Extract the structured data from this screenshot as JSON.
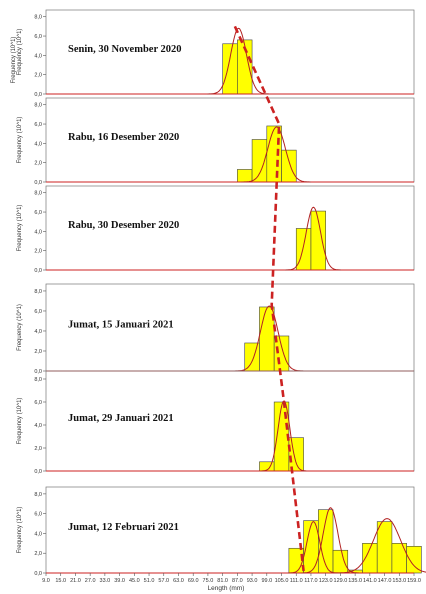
{
  "chart_data": {
    "type": "bar",
    "xlabel": "Length (mm)",
    "ylabel": "Frequency (10^1)",
    "ylim": [
      0,
      8
    ],
    "y_ticks": [
      "0,0",
      "2,0",
      "4,0",
      "6,0",
      "8,0"
    ],
    "x_tick_labels": [
      "9.0",
      "15.0",
      "21.0",
      "27.0",
      "33.0",
      "39.0",
      "45.0",
      "51.0",
      "57.0",
      "63.0",
      "69.0",
      "75.0",
      "81.0",
      "87.0",
      "93.0",
      "99.0",
      "105.0",
      "111.0",
      "117.0",
      "123.0",
      "129.0",
      "135.0",
      "141.0",
      "147.0",
      "153.0",
      "159.0"
    ],
    "bin_width": 6,
    "colors": {
      "bar": "#ffff00",
      "bar_edge": "#444444",
      "fit": "#b22222",
      "zero_line": "#cc2222",
      "trend": "#cc2222"
    },
    "panels": [
      {
        "title": "Senin, 30 November 2020",
        "bars": [
          {
            "x": 84,
            "y": 5.2
          },
          {
            "x": 90,
            "y": 5.6
          }
        ],
        "fit": {
          "mu": 87.5,
          "sigma": 3.2,
          "peak": 6.8
        }
      },
      {
        "title": "Rabu, 16 Desember 2020",
        "bars": [
          {
            "x": 90,
            "y": 1.3
          },
          {
            "x": 96,
            "y": 4.4
          },
          {
            "x": 102,
            "y": 5.8
          },
          {
            "x": 108,
            "y": 3.3
          }
        ],
        "fit": {
          "mu": 103,
          "sigma": 3.6,
          "peak": 5.7
        }
      },
      {
        "title": "Rabu, 30 Desember 2020",
        "bars": [
          {
            "x": 114,
            "y": 4.3
          },
          {
            "x": 120,
            "y": 6.1
          }
        ],
        "fit": {
          "mu": 118,
          "sigma": 2.9,
          "peak": 6.5
        }
      },
      {
        "title": "Jumat, 15 Januari 2021",
        "bars": [
          {
            "x": 93,
            "y": 2.8
          },
          {
            "x": 99,
            "y": 6.4
          },
          {
            "x": 105,
            "y": 3.5
          }
        ],
        "fit": {
          "mu": 100,
          "sigma": 3.6,
          "peak": 6.5
        }
      },
      {
        "title": "Jumat, 29 Januari 2021",
        "bars": [
          {
            "x": 99,
            "y": 0.8
          },
          {
            "x": 105,
            "y": 6.0
          },
          {
            "x": 111,
            "y": 2.9
          }
        ],
        "fit": {
          "mu": 106,
          "sigma": 2.4,
          "peak": 6.1
        }
      },
      {
        "title": "Jumat, 12 Februari 2021",
        "bars": [
          {
            "x": 111,
            "y": 2.5
          },
          {
            "x": 117,
            "y": 5.3
          },
          {
            "x": 123,
            "y": 6.4
          },
          {
            "x": 129,
            "y": 2.3
          },
          {
            "x": 135,
            "y": 0.3
          },
          {
            "x": 141,
            "y": 3.0
          },
          {
            "x": 147,
            "y": 5.2
          },
          {
            "x": 153,
            "y": 3.0
          },
          {
            "x": 159,
            "y": 2.7
          }
        ],
        "fit": [
          {
            "mu": 118,
            "sigma": 2.6,
            "peak": 5.2
          },
          {
            "mu": 125,
            "sigma": 3.0,
            "peak": 6.6
          },
          {
            "mu": 148,
            "sigma": 5.5,
            "peak": 5.5
          }
        ]
      }
    ],
    "trend_line": [
      {
        "panel": 0,
        "x": 86,
        "y": 7.0
      },
      {
        "panel": 1,
        "x": 104,
        "y": 6.0
      },
      {
        "panel": 3,
        "x": 101,
        "y": 6.6
      },
      {
        "panel": 4,
        "x": 106,
        "y": 6.0
      },
      {
        "panel": 5,
        "x": 114,
        "y": 0.2
      }
    ],
    "grid": false,
    "legend": "none"
  }
}
